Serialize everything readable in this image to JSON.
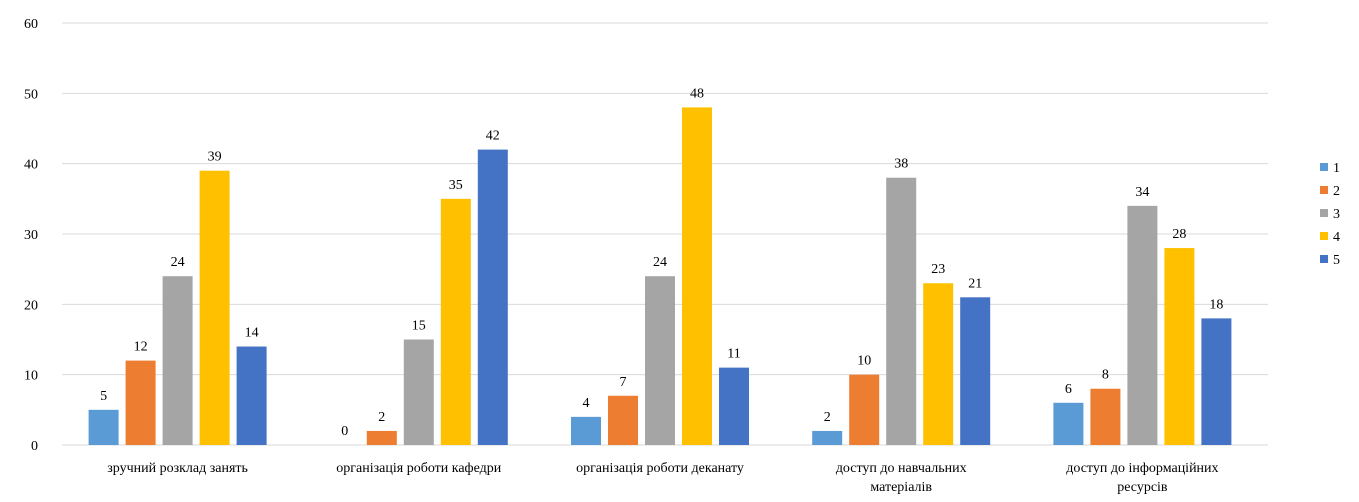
{
  "chart_data": {
    "type": "bar",
    "categories": [
      [
        "зручний розклад занять"
      ],
      [
        "організація роботи кафедри"
      ],
      [
        "організація роботи деканату"
      ],
      [
        "доступ до навчальних",
        "матеріалів"
      ],
      [
        "доступ до інформаційних",
        "ресурсів"
      ]
    ],
    "series": [
      {
        "name": "1",
        "color": "#5B9BD5",
        "values": [
          5,
          0,
          4,
          2,
          6
        ]
      },
      {
        "name": "2",
        "color": "#ED7D31",
        "values": [
          12,
          2,
          7,
          10,
          8
        ]
      },
      {
        "name": "3",
        "color": "#A5A5A5",
        "values": [
          24,
          15,
          24,
          38,
          34
        ]
      },
      {
        "name": "4",
        "color": "#FFC000",
        "values": [
          39,
          35,
          48,
          23,
          28
        ]
      },
      {
        "name": "5",
        "color": "#4472C4",
        "values": [
          14,
          42,
          11,
          21,
          18
        ]
      }
    ],
    "ylim": [
      0,
      60
    ],
    "yticks": [
      "0",
      "10",
      "20",
      "30",
      "40",
      "50",
      "60"
    ],
    "grid": true,
    "legend_position": "right",
    "gridline_color": "#D9D9D9"
  }
}
